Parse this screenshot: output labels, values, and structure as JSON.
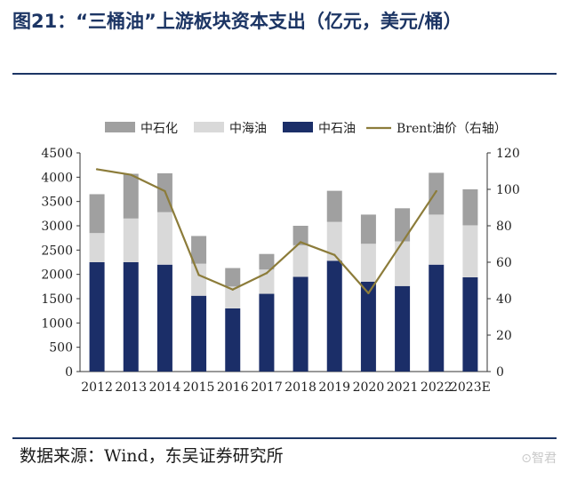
{
  "title": "图21：“三桶油”上游板块资本支出（亿元，美元/桶）",
  "source": "数据来源：Wind，东吴证券研究所",
  "watermark": "⊙智君",
  "colors": {
    "series1": "#a0a0a0",
    "series2": "#d9d9d9",
    "series3": "#1b2e68",
    "line": "#8c7c3a",
    "rule": "#1c3564"
  },
  "chart_data": {
    "type": "bar",
    "stacked": true,
    "categories": [
      "2012",
      "2013",
      "2014",
      "2015",
      "2016",
      "2017",
      "2018",
      "2019",
      "2020",
      "2021",
      "2022",
      "2023E"
    ],
    "series": [
      {
        "name": "中石油",
        "axis": "left",
        "values": [
          2250,
          2250,
          2200,
          1560,
          1300,
          1600,
          1950,
          2280,
          1850,
          1760,
          2200,
          1940
        ]
      },
      {
        "name": "中海油",
        "axis": "left",
        "values": [
          600,
          900,
          1080,
          660,
          450,
          500,
          650,
          800,
          780,
          920,
          1030,
          1070
        ]
      },
      {
        "name": "中石化",
        "axis": "left",
        "values": [
          800,
          920,
          800,
          570,
          380,
          320,
          400,
          640,
          600,
          680,
          860,
          740
        ]
      },
      {
        "name": "Brent油价（右轴）",
        "axis": "right",
        "type": "line",
        "values": [
          111,
          108,
          99,
          53,
          45,
          54,
          71,
          64,
          43,
          71,
          99,
          null
        ]
      }
    ],
    "legend_order": [
      "中石化",
      "中海油",
      "中石油",
      "Brent油价（右轴）"
    ],
    "legend_position": "top",
    "y_left": {
      "min": 0,
      "max": 4500,
      "step": 500,
      "ticks": [
        "0",
        "500",
        "1000",
        "1500",
        "2000",
        "2500",
        "3000",
        "3500",
        "4000",
        "4500"
      ]
    },
    "y_right": {
      "min": 0,
      "max": 120,
      "step": 20,
      "ticks": [
        "0",
        "20",
        "40",
        "60",
        "80",
        "100",
        "120"
      ]
    },
    "grid": false
  }
}
